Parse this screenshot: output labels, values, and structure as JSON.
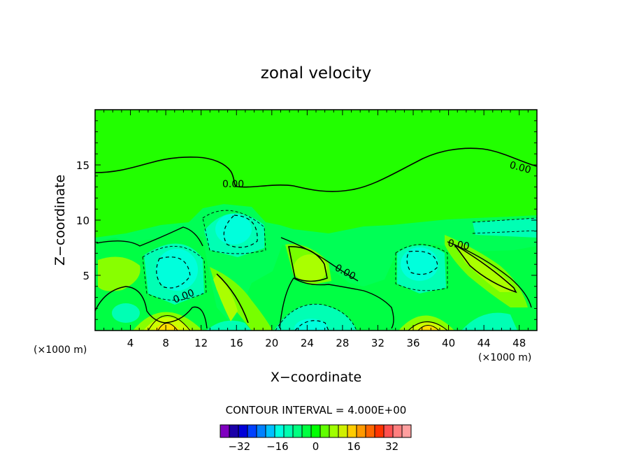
{
  "chart_data": {
    "type": "heatmap",
    "title": "zonal velocity",
    "xlabel": "X−coordinate",
    "ylabel": "Z−coordinate",
    "x_units": "(×1000 m)",
    "xlim": [
      0,
      50
    ],
    "ylim": [
      0,
      20
    ],
    "x_ticks": [
      "4",
      "8",
      "12",
      "16",
      "20",
      "24",
      "28",
      "32",
      "36",
      "40",
      "44",
      "48"
    ],
    "y_ticks": [
      "5",
      "10",
      "15"
    ],
    "contour_interval_text": "CONTOUR INTERVAL = 4.000E+00",
    "contour_labels": [
      "0.00",
      "0.00",
      "0.00",
      "0.00",
      "0.00",
      "0.00"
    ],
    "colorbar": {
      "levels": [
        -36,
        -32,
        -28,
        -24,
        -20,
        -16,
        -12,
        -8,
        -4,
        0,
        4,
        8,
        12,
        16,
        20,
        24,
        28,
        32,
        36
      ],
      "colors": [
        "#7f00bf",
        "#1a00a8",
        "#0000d8",
        "#0040ff",
        "#0080ff",
        "#00c0ff",
        "#00ffe0",
        "#00ffb0",
        "#00ff80",
        "#00ff40",
        "#00ff00",
        "#60ff00",
        "#a0ff00",
        "#d0f000",
        "#ffcc00",
        "#ff9900",
        "#ff6600",
        "#ff3300",
        "#ff5050",
        "#ff7f7f",
        "#ff9f9f"
      ],
      "tick_labels": [
        "−32",
        "−16",
        "0",
        "16",
        "32"
      ]
    },
    "field_features": [
      {
        "x": 8.3,
        "z": 5.3,
        "value": -8
      },
      {
        "x": 15.7,
        "z": 9.3,
        "value": -8
      },
      {
        "x": 36.2,
        "z": 6.1,
        "value": -8
      },
      {
        "x": 24.0,
        "z": 0.6,
        "value": -8
      },
      {
        "x": 43.2,
        "z": 0.6,
        "value": -4
      },
      {
        "x": 14.8,
        "z": 0.6,
        "value": -4
      },
      {
        "x": 8.0,
        "z": 0.5,
        "value": 16
      },
      {
        "x": 37.0,
        "z": 0.5,
        "value": 12
      },
      {
        "x": 23.6,
        "z": 5.6,
        "value": 8
      },
      {
        "x": 44.3,
        "z": 5.3,
        "value": 8
      },
      {
        "x": 2.0,
        "z": 5.0,
        "value": 4
      },
      {
        "x": 14.5,
        "z": 3.6,
        "value": 4
      }
    ]
  }
}
